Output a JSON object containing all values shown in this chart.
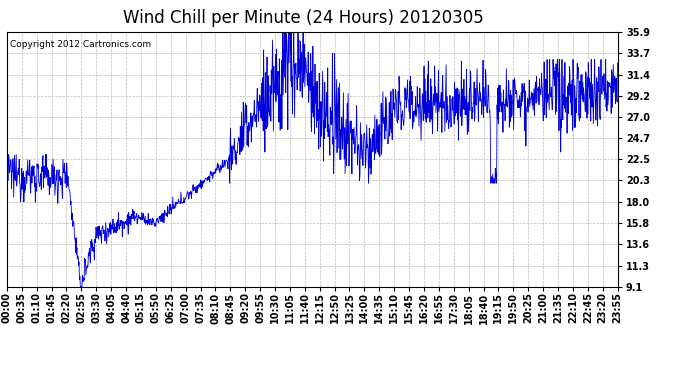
{
  "title": "Wind Chill per Minute (24 Hours) 20120305",
  "copyright_text": "Copyright 2012 Cartronics.com",
  "line_color": "#0000dd",
  "background_color": "#ffffff",
  "grid_color": "#bbbbbb",
  "yticks": [
    9.1,
    11.3,
    13.6,
    15.8,
    18.0,
    20.3,
    22.5,
    24.7,
    27.0,
    29.2,
    31.4,
    33.7,
    35.9
  ],
  "ylim": [
    9.1,
    35.9
  ],
  "x_tick_labels": [
    "00:00",
    "00:35",
    "01:10",
    "01:45",
    "02:20",
    "02:55",
    "03:30",
    "04:05",
    "04:40",
    "05:15",
    "05:50",
    "06:25",
    "07:00",
    "07:35",
    "08:10",
    "08:45",
    "09:20",
    "09:55",
    "10:30",
    "11:05",
    "11:40",
    "12:15",
    "12:50",
    "13:25",
    "14:00",
    "14:35",
    "15:10",
    "15:45",
    "16:20",
    "16:55",
    "17:30",
    "18:05",
    "18:40",
    "19:15",
    "19:50",
    "20:25",
    "21:00",
    "21:35",
    "22:10",
    "22:45",
    "23:20",
    "23:55"
  ],
  "title_fontsize": 12,
  "tick_fontsize": 7,
  "copyright_fontsize": 6.5
}
